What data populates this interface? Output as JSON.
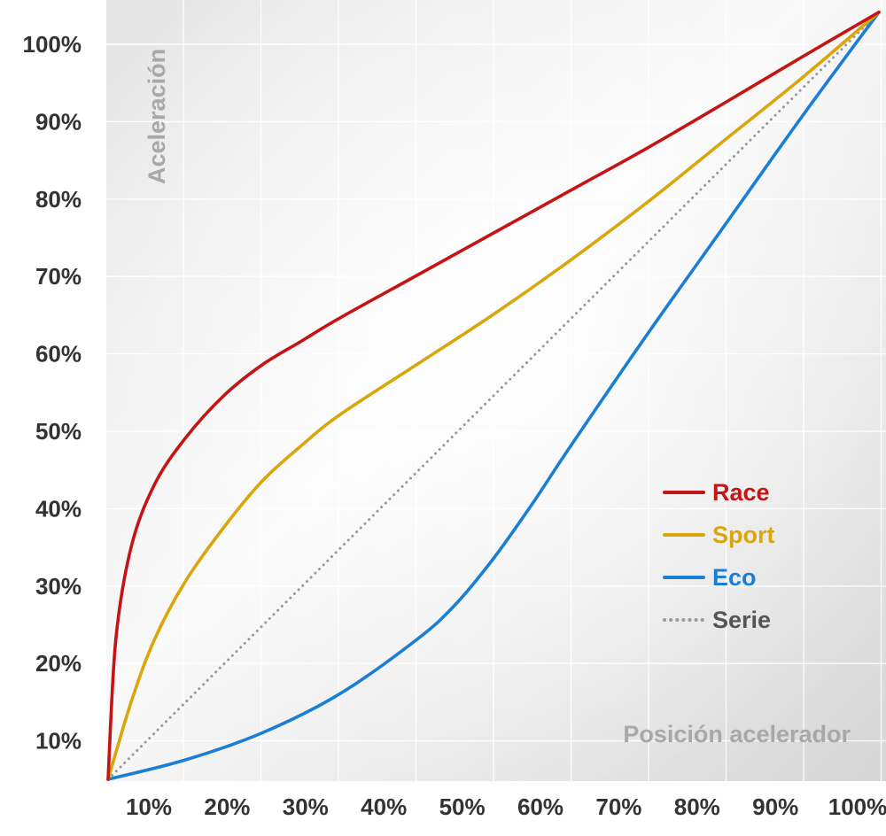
{
  "chart_data": {
    "type": "line",
    "xlabel": "Posición acelerador",
    "ylabel": "Aceleración",
    "x_ticks": [
      "10%",
      "20%",
      "30%",
      "40%",
      "50%",
      "60%",
      "70%",
      "80%",
      "90%",
      "100%"
    ],
    "y_ticks": [
      "100%",
      "90%",
      "80%",
      "70%",
      "60%",
      "50%",
      "40%",
      "30%",
      "20%",
      "10%"
    ],
    "xlim": [
      0,
      100
    ],
    "ylim": [
      0,
      100
    ],
    "grid": true,
    "legend_position": "bottom-right",
    "series": [
      {
        "name": "Race",
        "color": "#c41414",
        "style": "solid",
        "points": [
          [
            0,
            0
          ],
          [
            1,
            18
          ],
          [
            3,
            30
          ],
          [
            6,
            38
          ],
          [
            10,
            44
          ],
          [
            15,
            49.5
          ],
          [
            20,
            53.5
          ],
          [
            25,
            56.5
          ],
          [
            30,
            59.5
          ],
          [
            40,
            65
          ],
          [
            50,
            70.5
          ],
          [
            60,
            76
          ],
          [
            70,
            81.5
          ],
          [
            80,
            87.3
          ],
          [
            90,
            93.2
          ],
          [
            100,
            99
          ]
        ]
      },
      {
        "name": "Sport",
        "color": "#d9a60b",
        "style": "solid",
        "points": [
          [
            0,
            0
          ],
          [
            3,
            10
          ],
          [
            6,
            18
          ],
          [
            10,
            25.5
          ],
          [
            15,
            32.5
          ],
          [
            20,
            38.5
          ],
          [
            25,
            43
          ],
          [
            30,
            47
          ],
          [
            40,
            53.5
          ],
          [
            50,
            60
          ],
          [
            60,
            67
          ],
          [
            70,
            74.5
          ],
          [
            80,
            82.5
          ],
          [
            90,
            90.5
          ],
          [
            100,
            99
          ]
        ]
      },
      {
        "name": "Eco",
        "color": "#1a7fd4",
        "style": "solid",
        "points": [
          [
            0,
            0
          ],
          [
            10,
            2.5
          ],
          [
            20,
            6
          ],
          [
            30,
            11
          ],
          [
            40,
            18
          ],
          [
            45,
            22.5
          ],
          [
            50,
            28.5
          ],
          [
            55,
            35.5
          ],
          [
            60,
            43
          ],
          [
            70,
            57.5
          ],
          [
            80,
            71.5
          ],
          [
            90,
            85.5
          ],
          [
            100,
            99
          ]
        ]
      },
      {
        "name": "Serie",
        "color": "#9a9a9a",
        "style": "dotted",
        "points": [
          [
            0,
            0
          ],
          [
            100,
            99
          ]
        ]
      }
    ]
  }
}
